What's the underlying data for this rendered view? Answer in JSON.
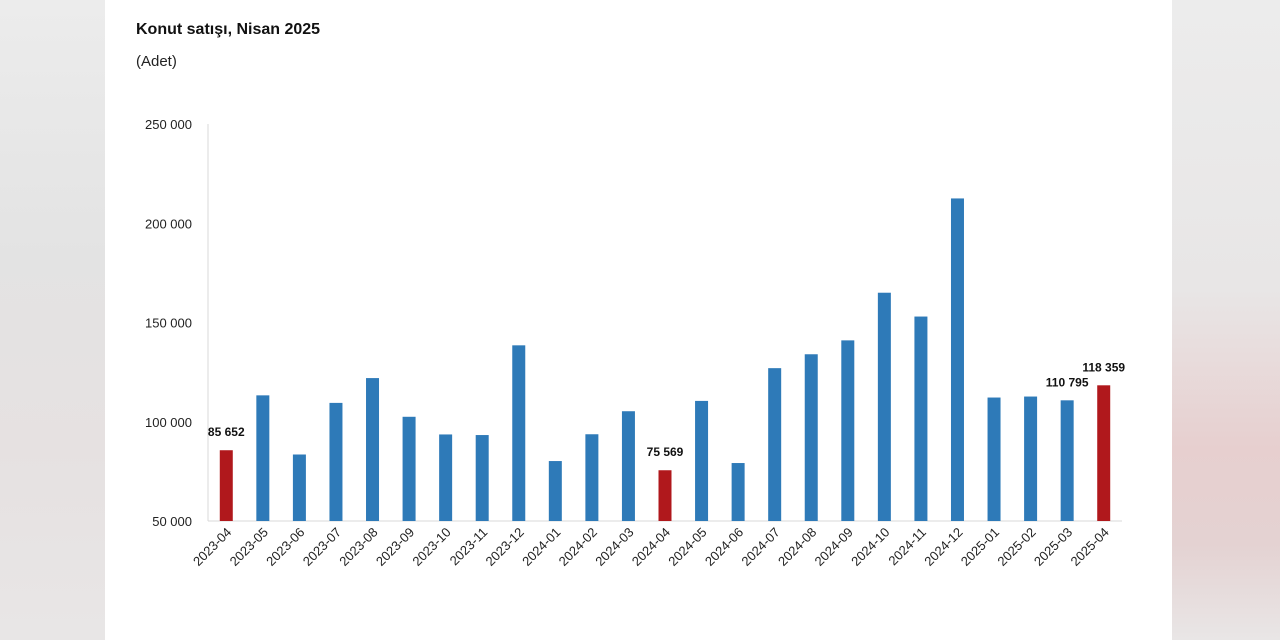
{
  "chart_data": {
    "type": "bar",
    "title": "Konut satışı, Nisan 2025",
    "subtitle": "(Adet)",
    "categories": [
      "2023-04",
      "2023-05",
      "2023-06",
      "2023-07",
      "2023-08",
      "2023-09",
      "2023-10",
      "2023-11",
      "2023-12",
      "2024-01",
      "2024-02",
      "2024-03",
      "2024-04",
      "2024-05",
      "2024-06",
      "2024-07",
      "2024-08",
      "2024-09",
      "2024-10",
      "2024-11",
      "2024-12",
      "2025-01",
      "2025-02",
      "2025-03",
      "2025-04"
    ],
    "values": [
      85652,
      113300,
      83500,
      109500,
      122000,
      102500,
      93600,
      93300,
      138500,
      80200,
      93700,
      105300,
      75569,
      110500,
      79200,
      127000,
      134000,
      141000,
      165000,
      153000,
      212500,
      112200,
      112700,
      110795,
      118359
    ],
    "highlight_indices": [
      0,
      12,
      24
    ],
    "data_labels": {
      "0": "85 652",
      "12": "75 569",
      "23": "110 795",
      "24": "118 359"
    },
    "yticks": [
      50000,
      100000,
      150000,
      200000,
      250000
    ],
    "ytick_labels": [
      "50 000",
      "100 000",
      "150 000",
      "200 000",
      "250 000"
    ],
    "ylim": [
      50000,
      250000
    ],
    "colors": {
      "normal": "#2e7ab8",
      "highlight": "#b0181c",
      "axis": "#d9d9d9",
      "text": "#222222"
    },
    "grid": false,
    "legend": "none"
  }
}
